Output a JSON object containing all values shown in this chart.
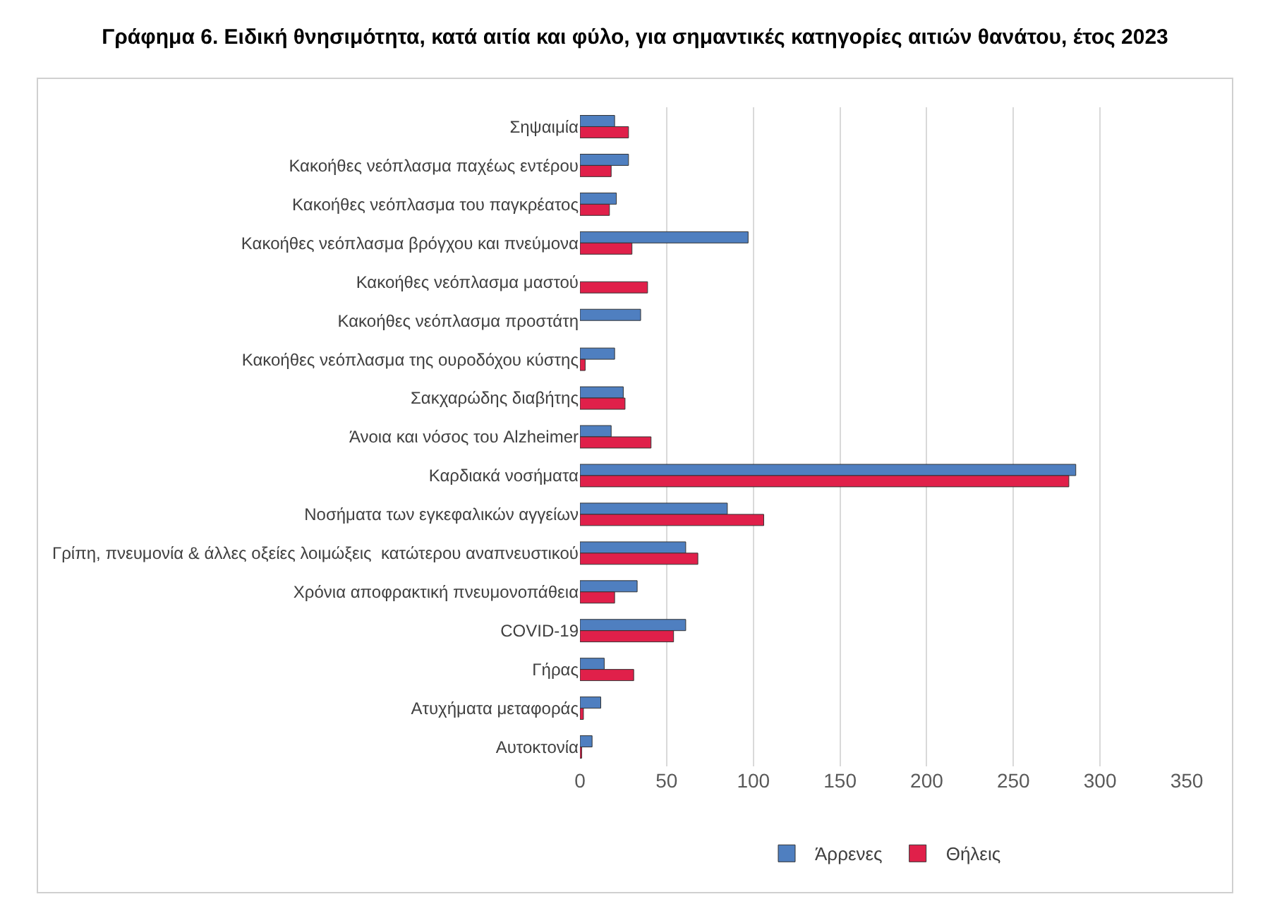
{
  "chart_data": {
    "type": "bar",
    "orientation": "horizontal",
    "title": "Γράφημα 6. Ειδική θνησιμότητα, κατά αιτία και φύλο, για σημαντικές κατηγορίες αιτιών θανάτου, έτος 2023",
    "categories": [
      "Σηψαιμία",
      "Κακοήθες νεόπλασμα παχέως εντέρου",
      "Κακοήθες νεόπλασμα του παγκρέατος",
      "Κακοήθες νεόπλασμα βρόγχου και πνεύμονα",
      "Κακοήθες νεόπλασμα μαστού",
      "Κακοήθες νεόπλασμα προστάτη",
      "Κακοήθες νεόπλασμα της ουροδόχου κύστης",
      "Σακχαρώδης διαβήτης",
      "Άνοια και νόσος του Alzheimer",
      "Καρδιακά νοσήματα",
      "Νοσήματα των εγκεφαλικών αγγείων",
      "Γρίπη, πνευμονία & άλλες οξείες λοιμώξεις  κατώτερου αναπνευστικού",
      "Χρόνια αποφρακτική πνευμονοπάθεια",
      "COVID-19",
      "Γήρας",
      "Ατυχήματα μεταφοράς",
      "Αυτοκτονία"
    ],
    "series": [
      {
        "name": "Άρρενες",
        "color": "#4f7fc0",
        "values": [
          20,
          28,
          21,
          97,
          null,
          35,
          20,
          25,
          18,
          286,
          85,
          61,
          33,
          61,
          14,
          12,
          7
        ]
      },
      {
        "name": "Θήλεις",
        "color": "#e0204a",
        "values": [
          28,
          18,
          17,
          30,
          39,
          null,
          3,
          26,
          41,
          282,
          106,
          68,
          20,
          54,
          31,
          2,
          1
        ]
      }
    ],
    "xlim": [
      0,
      350
    ],
    "xticks": [
      0,
      50,
      100,
      150,
      200,
      250,
      300,
      350
    ],
    "grid": "x",
    "legend": "bottom"
  }
}
